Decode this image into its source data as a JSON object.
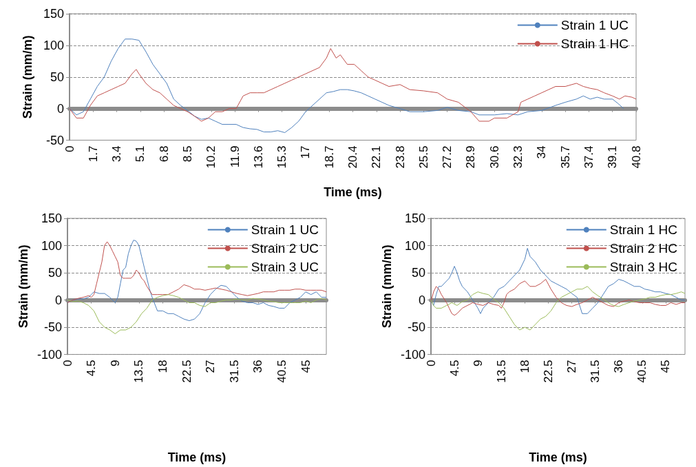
{
  "chart_data": [
    {
      "type": "line",
      "xlabel": "Time (ms)",
      "ylabel": "Strain (mm/m)",
      "xlim": [
        0,
        40.8
      ],
      "xticks": [
        0,
        1.7,
        3.4,
        5.1,
        6.8,
        8.5,
        10.2,
        11.9,
        13.6,
        15.3,
        17,
        18.7,
        20.4,
        22.1,
        23.8,
        25.5,
        27.2,
        28.9,
        30.6,
        32.3,
        34,
        35.7,
        37.4,
        39.1,
        40.8
      ],
      "ylim": [
        -50,
        150
      ],
      "yticks": [
        -50,
        0,
        50,
        100,
        150
      ],
      "grid": "y",
      "legend": "top right",
      "series": [
        {
          "name": "Strain 1 UC",
          "color": "#4f81bd",
          "x": [
            0,
            0.5,
            1,
            1.5,
            2,
            2.5,
            3,
            3.5,
            4,
            4.5,
            5,
            5.5,
            6,
            6.5,
            7,
            7.5,
            8,
            8.5,
            9,
            9.5,
            10,
            10.5,
            11,
            11.5,
            12,
            12.5,
            13,
            13.5,
            14,
            14.5,
            15,
            15.5,
            16,
            16.5,
            17,
            17.5,
            18,
            18.5,
            19,
            19.5,
            20,
            20.5,
            21,
            21.5,
            22,
            22.5,
            23,
            23.8,
            24.5,
            25.5,
            26.5,
            27.2,
            28,
            28.9,
            29.5,
            30.6,
            31.5,
            32.3,
            33,
            34,
            35,
            35.7,
            36.5,
            37,
            37.5,
            38,
            38.5,
            39.1,
            39.5,
            39.9
          ],
          "values": [
            0,
            -10,
            -5,
            15,
            35,
            50,
            75,
            95,
            110,
            110,
            108,
            90,
            70,
            55,
            40,
            15,
            5,
            -3,
            -12,
            -17,
            -15,
            -20,
            -25,
            -25,
            -25,
            -30,
            -32,
            -33,
            -37,
            -37,
            -35,
            -38,
            -30,
            -20,
            -5,
            5,
            15,
            25,
            27,
            30,
            30,
            28,
            25,
            20,
            15,
            10,
            5,
            0,
            -5,
            -5,
            -3,
            2,
            -3,
            -5,
            -10,
            -10,
            -8,
            -10,
            -5,
            -3,
            5,
            10,
            15,
            20,
            15,
            18,
            15,
            15,
            8,
            0
          ]
        },
        {
          "name": "Strain 1 HC",
          "color": "#c0504d",
          "x": [
            0,
            0.5,
            1,
            1.5,
            2,
            2.5,
            3,
            3.5,
            4,
            4.5,
            4.8,
            5,
            5.5,
            6,
            6.5,
            7,
            7.5,
            8,
            8.5,
            9,
            9.5,
            10,
            10.5,
            11,
            11.5,
            12,
            12.5,
            13,
            13.5,
            14,
            14.5,
            15,
            15.5,
            16,
            16.5,
            17,
            17.5,
            18,
            18.5,
            18.8,
            19.2,
            19.5,
            20,
            20.5,
            21,
            21.5,
            22,
            22.5,
            23,
            23.8,
            24.5,
            25.5,
            26.5,
            27.2,
            28,
            28.9,
            29.5,
            30.2,
            30.6,
            31.5,
            32.3,
            32.5,
            33,
            33.5,
            34,
            34.5,
            35,
            35.7,
            36.5,
            37,
            37.5,
            38,
            38.5,
            39.1,
            39.6,
            40,
            40.5,
            40.8
          ],
          "values": [
            0,
            -15,
            -15,
            5,
            20,
            25,
            30,
            35,
            40,
            55,
            62,
            55,
            40,
            30,
            25,
            15,
            5,
            0,
            -5,
            -12,
            -20,
            -15,
            -5,
            -5,
            0,
            0,
            20,
            25,
            25,
            25,
            30,
            35,
            40,
            45,
            50,
            55,
            60,
            65,
            80,
            95,
            80,
            85,
            70,
            70,
            60,
            50,
            45,
            40,
            35,
            38,
            30,
            28,
            25,
            15,
            10,
            -5,
            -20,
            -20,
            -15,
            -15,
            -5,
            10,
            15,
            20,
            25,
            30,
            35,
            35,
            40,
            35,
            32,
            30,
            25,
            20,
            15,
            20,
            18,
            15
          ]
        }
      ]
    },
    {
      "type": "line",
      "xlabel": "Time (ms)",
      "ylabel": "Strain (mm/m)",
      "xlim": [
        0,
        48.9
      ],
      "xticks": [
        0,
        4.5,
        9,
        13.5,
        18,
        22.5,
        27,
        31.5,
        36,
        40.5,
        45
      ],
      "ylim": [
        -100,
        150
      ],
      "yticks": [
        -100,
        -50,
        0,
        50,
        100,
        150
      ],
      "grid": "y",
      "legend": "top right",
      "series": [
        {
          "name": "Strain 1 UC",
          "color": "#4f81bd",
          "x": [
            0,
            1,
            2,
            3,
            4,
            4.5,
            5,
            6,
            7,
            8,
            9,
            9.5,
            10,
            10.5,
            11,
            11.5,
            12,
            12.5,
            13,
            13.5,
            14,
            14.5,
            15,
            15.5,
            16,
            17,
            18,
            19,
            20,
            21,
            22,
            23,
            24,
            25,
            26,
            27,
            28,
            29,
            30,
            31,
            32,
            33,
            34,
            35,
            36,
            37,
            38,
            39,
            40,
            41,
            42,
            43,
            44,
            45,
            46,
            47,
            48,
            48.9
          ],
          "values": [
            -5,
            0,
            2,
            2,
            5,
            10,
            15,
            12,
            12,
            5,
            -5,
            5,
            30,
            55,
            60,
            85,
            100,
            110,
            108,
            100,
            80,
            60,
            40,
            20,
            5,
            -20,
            -20,
            -25,
            -25,
            -30,
            -35,
            -38,
            -35,
            -25,
            -5,
            10,
            20,
            27,
            25,
            15,
            5,
            -2,
            -5,
            -5,
            -8,
            -5,
            -10,
            -12,
            -15,
            -15,
            -5,
            0,
            5,
            15,
            10,
            15,
            5,
            5
          ]
        },
        {
          "name": "Strain 2 UC",
          "color": "#c0504d",
          "x": [
            0,
            1,
            2,
            3,
            4,
            4.5,
            5,
            5.5,
            6,
            6.5,
            7,
            7.5,
            8,
            8.5,
            9,
            9.5,
            10,
            10.5,
            11,
            12,
            12.5,
            13,
            13.5,
            14,
            14.5,
            15,
            16,
            17,
            18,
            19,
            20,
            21,
            22,
            23,
            24,
            25,
            26,
            27,
            28,
            29,
            30,
            31,
            32,
            33,
            34,
            35,
            36,
            37,
            38,
            39,
            40,
            41,
            42,
            43,
            44,
            45,
            46,
            47,
            48,
            48.9
          ],
          "values": [
            -5,
            0,
            3,
            5,
            8,
            5,
            10,
            30,
            50,
            70,
            100,
            107,
            100,
            90,
            80,
            70,
            45,
            40,
            40,
            40,
            45,
            55,
            50,
            40,
            35,
            25,
            10,
            10,
            10,
            10,
            15,
            20,
            28,
            25,
            20,
            20,
            18,
            20,
            22,
            20,
            18,
            15,
            12,
            10,
            8,
            10,
            12,
            15,
            15,
            15,
            18,
            18,
            18,
            20,
            20,
            18,
            18,
            18,
            18,
            15
          ]
        },
        {
          "name": "Strain 3 UC",
          "color": "#9bbb59",
          "x": [
            0,
            1,
            2,
            3,
            4,
            5,
            6,
            7,
            8,
            9,
            10,
            11,
            12,
            13,
            14,
            15,
            16,
            17,
            18,
            19,
            20,
            21,
            22,
            23,
            24,
            25,
            26,
            27,
            28,
            29,
            30,
            31,
            32,
            33,
            34,
            35,
            36,
            37,
            38,
            39,
            40,
            41,
            42,
            43,
            44,
            45,
            46,
            47,
            48,
            48.9
          ],
          "values": [
            0,
            -3,
            -2,
            -5,
            -10,
            -20,
            -40,
            -50,
            -55,
            -62,
            -55,
            -55,
            -50,
            -40,
            -25,
            -15,
            0,
            5,
            8,
            10,
            8,
            5,
            0,
            -5,
            -5,
            -10,
            -12,
            -5,
            -5,
            -2,
            0,
            0,
            2,
            0,
            0,
            3,
            2,
            0,
            -2,
            -3,
            -5,
            -5,
            -5,
            -5,
            -5,
            -2,
            -5,
            0,
            3,
            0
          ]
        }
      ]
    },
    {
      "type": "line",
      "xlabel": "Time (ms)",
      "ylabel": "Strain (mm/m)",
      "xlim": [
        0,
        48.7
      ],
      "xticks": [
        0,
        4.5,
        9,
        13.5,
        18,
        22.5,
        27,
        31.5,
        36,
        40.5,
        45
      ],
      "ylim": [
        -100,
        150
      ],
      "yticks": [
        -100,
        -50,
        0,
        50,
        100,
        150
      ],
      "grid": "y",
      "legend": "top right",
      "series": [
        {
          "name": "Strain 1 HC",
          "color": "#4f81bd",
          "x": [
            0,
            0.5,
            1,
            1.5,
            2,
            3,
            3.5,
            4,
            4.5,
            5,
            5.5,
            6,
            7,
            8,
            9,
            9.5,
            10,
            11,
            12,
            13,
            14,
            15,
            16,
            17,
            18,
            18.5,
            19,
            20,
            21,
            22,
            23,
            24,
            25,
            26,
            27,
            28,
            29,
            30,
            31,
            32,
            33,
            34,
            35,
            36,
            37,
            38,
            39,
            40,
            41,
            42,
            43,
            44,
            45,
            46,
            47,
            48,
            48.7
          ],
          "values": [
            0,
            -10,
            10,
            25,
            25,
            35,
            40,
            50,
            62,
            50,
            35,
            25,
            15,
            0,
            -15,
            -25,
            -15,
            -5,
            5,
            20,
            25,
            35,
            45,
            55,
            75,
            95,
            80,
            70,
            55,
            45,
            35,
            30,
            25,
            20,
            12,
            5,
            -25,
            -25,
            -15,
            -5,
            10,
            25,
            30,
            38,
            35,
            30,
            25,
            25,
            20,
            18,
            15,
            15,
            12,
            10,
            5,
            0,
            0
          ]
        },
        {
          "name": "Strain 2 HC",
          "color": "#c0504d",
          "x": [
            0,
            0.5,
            1,
            1.5,
            2,
            3,
            3.5,
            4,
            4.5,
            5,
            6,
            7,
            8,
            9,
            10,
            11,
            12,
            13,
            13.5,
            14,
            14.5,
            15,
            16,
            17,
            18,
            19,
            20,
            21,
            22,
            23,
            24,
            25,
            26,
            27,
            28,
            29,
            30,
            31,
            32,
            33,
            34,
            35,
            36,
            37,
            38,
            39,
            40,
            41,
            42,
            43,
            44,
            45,
            46,
            47,
            48,
            48.7
          ],
          "values": [
            -3,
            15,
            25,
            20,
            10,
            -5,
            -15,
            -25,
            -28,
            -25,
            -15,
            -10,
            -5,
            -8,
            -10,
            -5,
            -8,
            -10,
            -15,
            -5,
            10,
            15,
            20,
            30,
            35,
            25,
            25,
            30,
            38,
            20,
            5,
            -5,
            -10,
            -12,
            -8,
            -5,
            0,
            5,
            0,
            -5,
            -10,
            -12,
            -5,
            -2,
            0,
            -3,
            -5,
            -5,
            -5,
            -8,
            -10,
            -10,
            -5,
            -8,
            -5,
            -5
          ]
        },
        {
          "name": "Strain 3 HC",
          "color": "#9bbb59",
          "x": [
            0,
            0.5,
            1,
            2,
            3,
            4,
            5,
            6,
            7,
            8,
            9,
            10,
            11,
            12,
            13,
            14,
            15,
            16,
            17,
            18,
            19,
            20,
            21,
            22,
            23,
            24,
            25,
            26,
            27,
            28,
            29,
            30,
            31,
            32,
            33,
            34,
            35,
            36,
            37,
            38,
            39,
            40,
            41,
            42,
            43,
            44,
            45,
            46,
            47,
            48,
            48.7
          ],
          "values": [
            0,
            -10,
            -15,
            -15,
            -10,
            -5,
            -10,
            -3,
            0,
            10,
            15,
            12,
            10,
            2,
            -5,
            -15,
            -30,
            -45,
            -55,
            -50,
            -55,
            -45,
            -35,
            -30,
            -20,
            -5,
            5,
            10,
            15,
            20,
            20,
            25,
            15,
            8,
            2,
            -5,
            -10,
            -12,
            -8,
            -5,
            -2,
            0,
            2,
            5,
            5,
            8,
            10,
            10,
            12,
            15,
            12
          ]
        }
      ]
    }
  ]
}
